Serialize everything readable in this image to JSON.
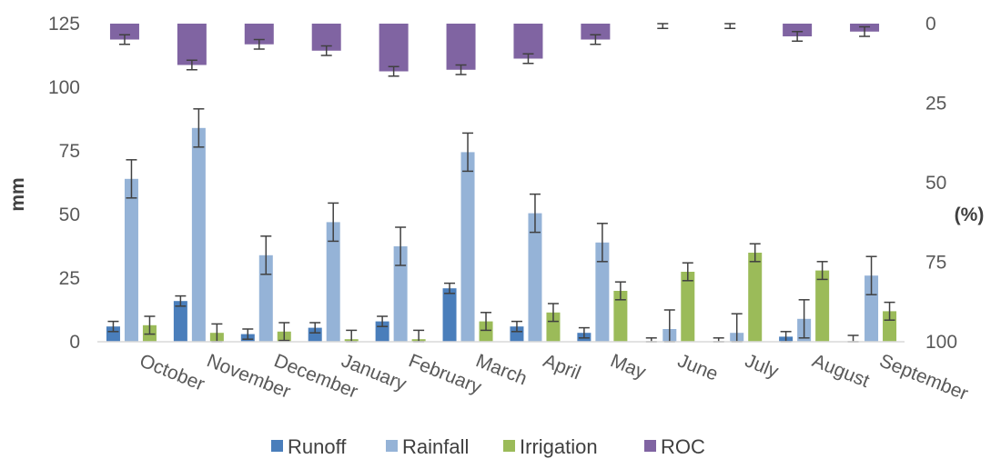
{
  "chart_data": {
    "type": "bar",
    "categories": [
      "October",
      "November",
      "December",
      "January",
      "February",
      "March",
      "April",
      "May",
      "June",
      "July",
      "August",
      "September"
    ],
    "ylabel_left": "mm",
    "ylabel_right": "(%)",
    "ylim_left": [
      0,
      125
    ],
    "yticks_left": [
      0,
      25,
      50,
      75,
      100,
      125
    ],
    "ylim_right": [
      0,
      100
    ],
    "yticks_right": [
      0,
      25,
      50,
      75,
      100
    ],
    "right_axis_inverted": true,
    "legend_position": "bottom",
    "grid": false,
    "series": [
      {
        "name": "Runoff",
        "color": "#4a7ebb",
        "axis": "left",
        "values": [
          6,
          16,
          3,
          5.5,
          8,
          21,
          6,
          3.5,
          0,
          0,
          2,
          0
        ],
        "errors": [
          2,
          2,
          2,
          2,
          2,
          2,
          2,
          2,
          1.5,
          1.5,
          2,
          2.5
        ]
      },
      {
        "name": "Rainfall",
        "color": "#95b3d7",
        "axis": "left",
        "values": [
          64,
          84,
          34,
          47,
          37.5,
          74.5,
          50.5,
          39,
          5,
          3.5,
          9,
          26
        ],
        "errors": [
          7.5,
          7.5,
          7.5,
          7.5,
          7.5,
          7.5,
          7.5,
          7.5,
          7.5,
          7.5,
          7.5,
          7.5
        ]
      },
      {
        "name": "Irrigation",
        "color": "#9bbb59",
        "axis": "left",
        "values": [
          6.5,
          3.5,
          4,
          1,
          1,
          8,
          11.5,
          20,
          27.5,
          35,
          28,
          12
        ],
        "errors": [
          3.5,
          3.5,
          3.5,
          3.5,
          3.5,
          3.5,
          3.5,
          3.5,
          3.5,
          3.5,
          3.5,
          3.5
        ]
      },
      {
        "name": "ROC",
        "color": "#8064a2",
        "axis": "right",
        "values": [
          5,
          13,
          6.5,
          8.5,
          15,
          14.5,
          11,
          5,
          0,
          0,
          4,
          2.5
        ],
        "errors": [
          1.5,
          1.5,
          1.5,
          1.5,
          1.5,
          1.5,
          1.5,
          1.5,
          1.5,
          1.5,
          1.5,
          1.5
        ]
      }
    ]
  }
}
